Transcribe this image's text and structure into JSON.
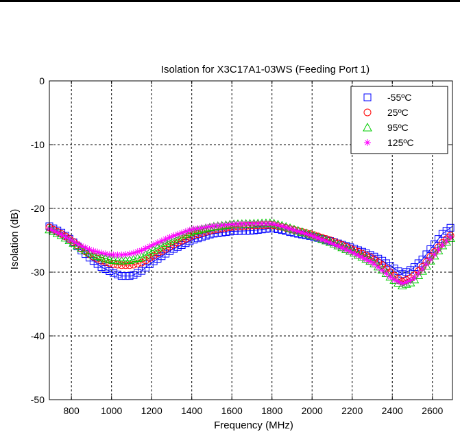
{
  "chart_data": {
    "type": "line",
    "title": "Isolation for X3C17A1-03WS (Feeding Port 1)",
    "xlabel": "Frequency (MHz)",
    "ylabel": "Isolation (dB)",
    "xlim": [
      690,
      2700
    ],
    "ylim": [
      -50,
      0
    ],
    "xticks": [
      800,
      1000,
      1200,
      1400,
      1600,
      1800,
      2000,
      2200,
      2400,
      2600
    ],
    "xtick_labels": [
      "800",
      "1000",
      "1200",
      "1400",
      "1600",
      "1800",
      "2000",
      "2200",
      "2400",
      "2600"
    ],
    "yticks": [
      0,
      -10,
      -20,
      -30,
      -40,
      -50
    ],
    "ytick_labels": [
      "0",
      "-10",
      "-20",
      "-30",
      "-40",
      "-50"
    ],
    "grid": true,
    "legend_position": "top-right",
    "x": [
      690,
      750,
      800,
      850,
      900,
      950,
      1000,
      1050,
      1100,
      1150,
      1200,
      1300,
      1400,
      1500,
      1600,
      1700,
      1800,
      1850,
      1900,
      2000,
      2100,
      2200,
      2300,
      2350,
      2400,
      2450,
      2500,
      2550,
      2600,
      2650,
      2700
    ],
    "series": [
      {
        "name": "-55ºC",
        "color": "#0000ff",
        "marker": "square",
        "values": [
          -22.8,
          -23.8,
          -25.0,
          -26.6,
          -28.0,
          -29.2,
          -30.0,
          -30.6,
          -30.6,
          -29.8,
          -28.5,
          -26.5,
          -25.0,
          -24.0,
          -23.6,
          -23.5,
          -23.1,
          -23.4,
          -23.8,
          -24.4,
          -25.2,
          -26.2,
          -27.4,
          -28.2,
          -29.2,
          -30.3,
          -29.5,
          -28.0,
          -26.0,
          -24.0,
          -22.8
        ]
      },
      {
        "name": "25ºC",
        "color": "#ff0000",
        "marker": "circle",
        "values": [
          -23.0,
          -24.0,
          -25.0,
          -26.3,
          -27.4,
          -28.2,
          -28.7,
          -28.9,
          -28.9,
          -28.5,
          -27.6,
          -25.8,
          -24.3,
          -23.4,
          -22.9,
          -22.7,
          -22.6,
          -22.9,
          -23.3,
          -24.1,
          -25.1,
          -26.4,
          -27.8,
          -28.9,
          -30.3,
          -31.5,
          -30.8,
          -29.2,
          -27.2,
          -25.4,
          -24.0
        ]
      },
      {
        "name": "95ºC",
        "color": "#00cc00",
        "marker": "triangle",
        "values": [
          -23.3,
          -24.2,
          -25.2,
          -26.2,
          -27.1,
          -27.7,
          -28.1,
          -28.2,
          -28.1,
          -27.6,
          -26.7,
          -24.9,
          -23.6,
          -22.9,
          -22.5,
          -22.4,
          -22.3,
          -22.7,
          -23.2,
          -24.2,
          -25.4,
          -26.8,
          -28.4,
          -29.6,
          -31.0,
          -32.1,
          -31.5,
          -29.8,
          -27.8,
          -25.8,
          -24.4
        ]
      },
      {
        "name": "125ºC",
        "color": "#ff00ff",
        "marker": "star",
        "values": [
          -23.2,
          -24.1,
          -25.0,
          -25.9,
          -26.6,
          -27.0,
          -27.3,
          -27.3,
          -27.1,
          -26.6,
          -25.8,
          -24.4,
          -23.3,
          -22.8,
          -22.5,
          -22.4,
          -22.4,
          -22.8,
          -23.3,
          -24.3,
          -25.5,
          -26.9,
          -28.5,
          -29.7,
          -31.0,
          -31.8,
          -31.2,
          -29.5,
          -27.6,
          -25.7,
          -24.2
        ]
      }
    ]
  }
}
